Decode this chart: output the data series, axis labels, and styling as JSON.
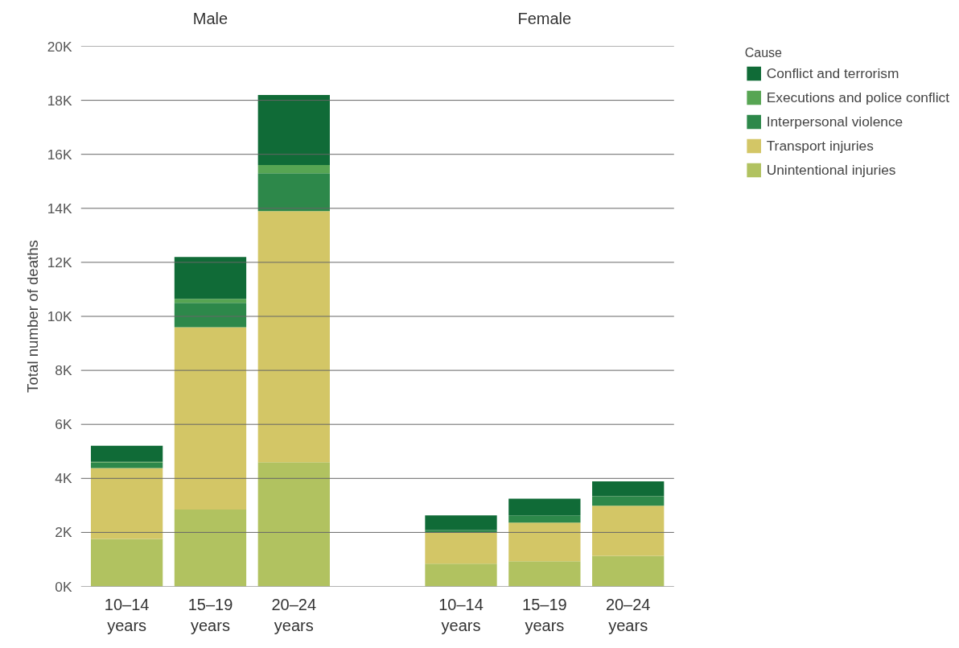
{
  "chart_data": {
    "type": "bar",
    "ylabel": "Total number of deaths",
    "stacked": true,
    "categories": [
      "10–14\nyears",
      "15–19\nyears",
      "20–24\nyears",
      null,
      "10–14\nyears",
      "15–19\nyears",
      "20–24\nyears"
    ],
    "annotations": [
      "Male",
      "Female"
    ],
    "series": [
      {
        "name": "Unintentional injuries",
        "color": "#b1c260",
        "values": [
          1.76,
          2.85,
          4.6,
          null,
          0.84,
          0.93,
          1.13
        ]
      },
      {
        "name": "Transport injuries",
        "color": "#d3c666",
        "values": [
          2.62,
          6.75,
          9.3,
          null,
          1.15,
          1.43,
          1.86
        ]
      },
      {
        "name": "Interpersonal violence",
        "color": "#2d884a",
        "values": [
          0.2,
          0.9,
          1.4,
          null,
          0.1,
          0.27,
          0.33
        ]
      },
      {
        "name": "Executions and police conflict",
        "color": "#57a553",
        "values": [
          0.03,
          0.15,
          0.3,
          null,
          null,
          null,
          0.02
        ]
      },
      {
        "name": "Conflict and terrorism",
        "color": "#106b37",
        "values": [
          0.6,
          1.55,
          2.6,
          null,
          0.54,
          0.62,
          0.55
        ]
      }
    ],
    "ylim": [
      0,
      20
    ],
    "yticks": [
      {
        "value": 0,
        "label": "0K"
      },
      {
        "value": 2,
        "label": "2K"
      },
      {
        "value": 4,
        "label": "4K"
      },
      {
        "value": 6,
        "label": "6K"
      },
      {
        "value": 8,
        "label": "8K"
      },
      {
        "value": 10,
        "label": "10K"
      },
      {
        "value": 12,
        "label": "12K"
      },
      {
        "value": 14,
        "label": "14K"
      },
      {
        "value": 16,
        "label": "16K"
      },
      {
        "value": 18,
        "label": "18K"
      },
      {
        "value": 20,
        "label": "20K"
      }
    ],
    "grid": "y",
    "legend": "right",
    "legend_title": "Cause"
  }
}
